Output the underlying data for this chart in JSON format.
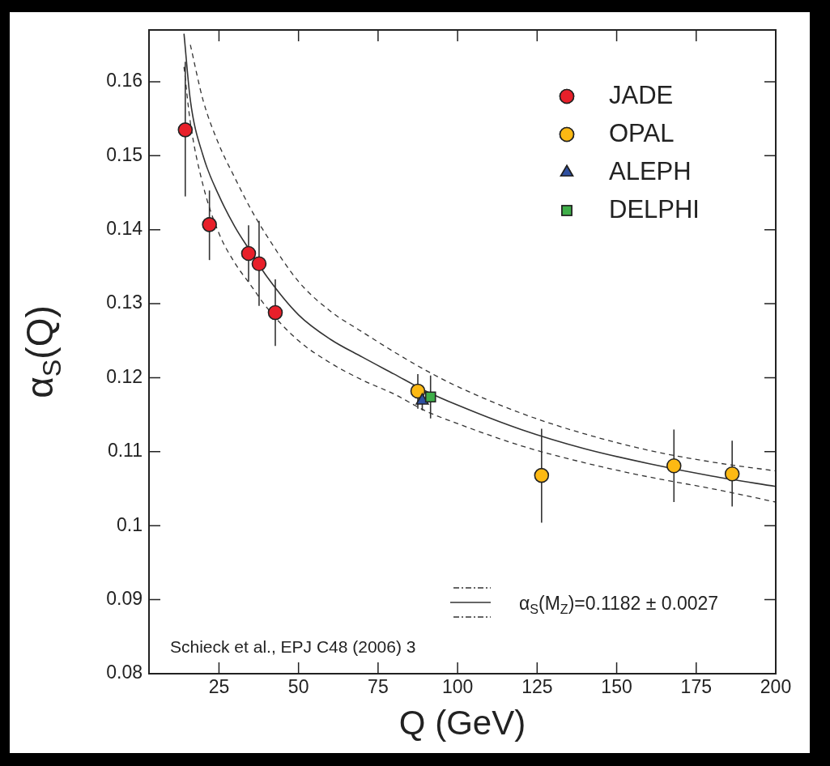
{
  "chart_data": {
    "type": "scatter",
    "xlabel": "Q (GeV)",
    "ylabel": "α$_{S}$(Q)",
    "xlim": [
      3,
      200
    ],
    "xticks": [
      25,
      50,
      75,
      100,
      125,
      150,
      175,
      200
    ],
    "ylim": [
      0.08,
      0.167
    ],
    "yticks": [
      0.08,
      0.09,
      0.1,
      0.11,
      0.12,
      0.13,
      0.14,
      0.15,
      0.16
    ],
    "legend": "top right",
    "grid": false,
    "annotations": [
      "Schieck et al., EPJ C48 (2006) 3"
    ],
    "series": [
      {
        "name": "JADE",
        "type": "scatter",
        "marker": "circle",
        "color": "#e8202a",
        "x": [
          14.4,
          22.0,
          34.3,
          37.6,
          42.7
        ],
        "values": [
          0.1535,
          0.1407,
          0.1368,
          0.1354,
          0.1288
        ],
        "errors": [
          [
            0.1445,
            0.1627
          ],
          [
            0.1359,
            0.1453
          ],
          [
            0.133,
            0.1406
          ],
          [
            0.1297,
            0.1412
          ],
          [
            0.1243,
            0.1333
          ]
        ]
      },
      {
        "name": "OPAL",
        "type": "scatter",
        "marker": "circle",
        "color": "#fdb913",
        "x": [
          87.5,
          126.4,
          168.0,
          186.3
        ],
        "values": [
          0.1182,
          0.1068,
          0.1081,
          0.107
        ],
        "errors": [
          [
            0.1158,
            0.1205
          ],
          [
            0.1004,
            0.1131
          ],
          [
            0.1032,
            0.113
          ],
          [
            0.1026,
            0.1115
          ]
        ]
      },
      {
        "name": "ALEPH",
        "type": "scatter",
        "marker": "triangle",
        "color": "#2e4fa0",
        "x": [
          88.9
        ],
        "values": [
          0.1169
        ],
        "errors": [
          [
            0.1156,
            0.1182
          ]
        ]
      },
      {
        "name": "DELPHI",
        "type": "scatter",
        "marker": "square",
        "color": "#3fae49",
        "x": [
          91.5
        ],
        "values": [
          0.1174
        ],
        "errors": [
          [
            0.1145,
            0.1203
          ]
        ]
      },
      {
        "name": "α$_{S}$(M$_{Z}$)=0.1182 ± 0.0027",
        "type": "line",
        "line_style": "solid",
        "color": "#333333",
        "x": [
          14,
          16,
          20,
          25,
          30,
          35,
          40,
          50,
          60,
          70,
          80,
          90,
          100,
          120,
          140,
          160,
          180,
          200
        ],
        "values": [
          0.1665,
          0.1575,
          0.15,
          0.1446,
          0.1404,
          0.137,
          0.1337,
          0.1285,
          0.1252,
          0.1228,
          0.1205,
          0.1182,
          0.1163,
          0.113,
          0.1104,
          0.1084,
          0.1067,
          0.1053
        ]
      },
      {
        "type": "line",
        "line_style": "dashed",
        "color": "#333333",
        "x": [
          16,
          20,
          25,
          30,
          35,
          40,
          50,
          60,
          70,
          80,
          90,
          100,
          120,
          140,
          160,
          180,
          200
        ],
        "values": [
          0.165,
          0.1575,
          0.1515,
          0.147,
          0.1428,
          0.1392,
          0.133,
          0.129,
          0.1262,
          0.1235,
          0.121,
          0.1188,
          0.1152,
          0.1124,
          0.1102,
          0.1086,
          0.1074
        ]
      },
      {
        "type": "line",
        "line_style": "dashed",
        "color": "#333333",
        "x": [
          14,
          16,
          20,
          25,
          30,
          35,
          40,
          50,
          60,
          70,
          80,
          90,
          100,
          120,
          140,
          160,
          180,
          200
        ],
        "values": [
          0.162,
          0.1545,
          0.146,
          0.1395,
          0.1355,
          0.1325,
          0.1295,
          0.125,
          0.122,
          0.1197,
          0.1178,
          0.1155,
          0.1138,
          0.1108,
          0.1085,
          0.1066,
          0.105,
          0.1032
        ]
      }
    ]
  }
}
